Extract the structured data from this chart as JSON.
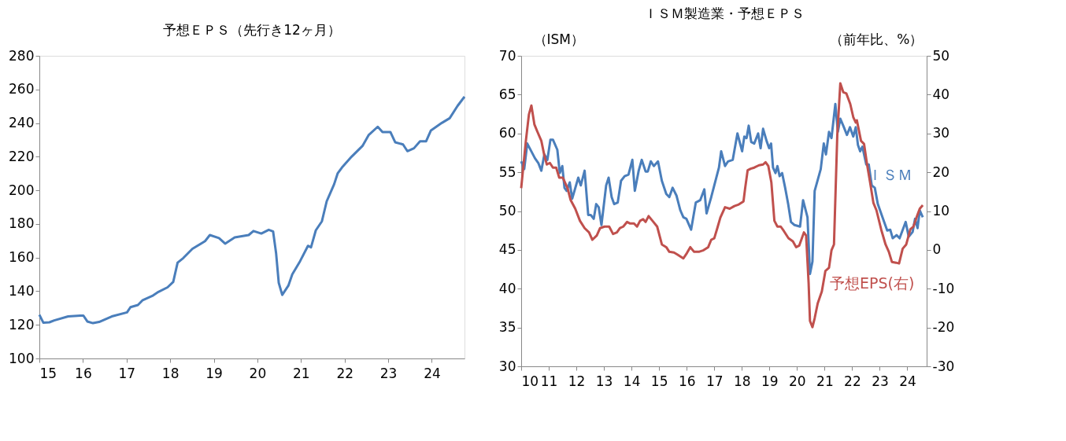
{
  "chart_data": [
    {
      "type": "line",
      "title": "予想ＥＰＳ（先行き12ヶ月）",
      "xlim": [
        2015,
        2024.75
      ],
      "xticks": [
        {
          "value": 2015,
          "label": "15"
        },
        {
          "value": 2016,
          "label": "16"
        },
        {
          "value": 2017,
          "label": "17"
        },
        {
          "value": 2018,
          "label": "18"
        },
        {
          "value": 2019,
          "label": "19"
        },
        {
          "value": 2020,
          "label": "20"
        },
        {
          "value": 2021,
          "label": "21"
        },
        {
          "value": 2022,
          "label": "22"
        },
        {
          "value": 2023,
          "label": "23"
        },
        {
          "value": 2024,
          "label": "24"
        }
      ],
      "ylim": [
        100,
        280
      ],
      "yticks": [
        100,
        120,
        140,
        160,
        180,
        200,
        220,
        240,
        260,
        280
      ],
      "grid": false,
      "series": [
        {
          "color": "#4a7ebb",
          "x": [
            2015.0,
            2015.09,
            2015.23,
            2015.34,
            2015.66,
            2015.94,
            2016.01,
            2016.1,
            2016.23,
            2016.37,
            2016.66,
            2017.01,
            2017.09,
            2017.26,
            2017.37,
            2017.59,
            2017.73,
            2017.94,
            2018.07,
            2018.17,
            2018.3,
            2018.51,
            2018.8,
            2018.91,
            2019.12,
            2019.26,
            2019.48,
            2019.8,
            2019.91,
            2020.09,
            2020.26,
            2020.36,
            2020.43,
            2020.49,
            2020.57,
            2020.71,
            2020.8,
            2020.98,
            2021.16,
            2021.23,
            2021.34,
            2021.48,
            2021.59,
            2021.76,
            2021.84,
            2021.94,
            2022.16,
            2022.41,
            2022.55,
            2022.76,
            2022.87,
            2023.05,
            2023.16,
            2023.34,
            2023.44,
            2023.59,
            2023.73,
            2023.87,
            2023.98,
            2024.23,
            2024.41,
            2024.59,
            2024.75
          ],
          "values": [
            126,
            121.3,
            121.5,
            122.6,
            125,
            125.5,
            125.5,
            122,
            121,
            121.7,
            125,
            127.4,
            130.5,
            131.8,
            134.7,
            137.2,
            139.6,
            142.3,
            145.5,
            157,
            159.7,
            165.2,
            169.8,
            173.4,
            171.6,
            168.3,
            172,
            173.4,
            175.8,
            174.3,
            176.5,
            175.6,
            162.4,
            145,
            137.8,
            143.3,
            150,
            157.9,
            167,
            166.1,
            176.2,
            181.6,
            193.5,
            203.6,
            210,
            213.6,
            220,
            226.4,
            232.8,
            237.8,
            234.7,
            234.7,
            228.6,
            227.3,
            223.3,
            225,
            229.2,
            229.2,
            235.6,
            240.1,
            242.9,
            250.2,
            255.7
          ]
        }
      ]
    },
    {
      "type": "line",
      "title": "ＩＳＭ製造業・予想ＥＰＳ",
      "ylabel": "（ISM）",
      "y2label": "（前年比、%）",
      "xlim": [
        2010,
        2024.7
      ],
      "xticks": [
        {
          "value": 2010,
          "label": "10"
        },
        {
          "value": 2011,
          "label": "11"
        },
        {
          "value": 2012,
          "label": "12"
        },
        {
          "value": 2013,
          "label": "13"
        },
        {
          "value": 2014,
          "label": "14"
        },
        {
          "value": 2015,
          "label": "15"
        },
        {
          "value": 2016,
          "label": "16"
        },
        {
          "value": 2017,
          "label": "17"
        },
        {
          "value": 2018,
          "label": "18"
        },
        {
          "value": 2019,
          "label": "19"
        },
        {
          "value": 2020,
          "label": "20"
        },
        {
          "value": 2021,
          "label": "21"
        },
        {
          "value": 2022,
          "label": "22"
        },
        {
          "value": 2023,
          "label": "23"
        },
        {
          "value": 2024,
          "label": "24"
        }
      ],
      "ylim": [
        30,
        70
      ],
      "yticks": [
        30,
        35,
        40,
        45,
        50,
        55,
        60,
        65,
        70
      ],
      "y2lim": [
        -30,
        50
      ],
      "y2ticks": [
        -30,
        -20,
        -10,
        0,
        10,
        20,
        30,
        40,
        50
      ],
      "grid": false,
      "series": [
        {
          "name": "ＩＳＭ",
          "color": "#4a7ebb",
          "x": [
            2010.0,
            2010.11,
            2010.22,
            2010.5,
            2010.62,
            2010.73,
            2010.84,
            2010.95,
            2011.06,
            2011.15,
            2011.31,
            2011.4,
            2011.49,
            2011.57,
            2011.65,
            2011.76,
            2011.85,
            2012.07,
            2012.16,
            2012.3,
            2012.43,
            2012.52,
            2012.63,
            2012.72,
            2012.81,
            2012.91,
            2013.08,
            2013.17,
            2013.28,
            2013.37,
            2013.5,
            2013.62,
            2013.75,
            2013.89,
            2014.03,
            2014.12,
            2014.26,
            2014.37,
            2014.51,
            2014.59,
            2014.7,
            2014.81,
            2014.96,
            2015.1,
            2015.26,
            2015.37,
            2015.49,
            2015.63,
            2015.77,
            2015.88,
            2015.99,
            2016.16,
            2016.33,
            2016.49,
            2016.64,
            2016.72,
            2016.89,
            2017.17,
            2017.25,
            2017.39,
            2017.5,
            2017.67,
            2017.84,
            2018.01,
            2018.09,
            2018.17,
            2018.25,
            2018.34,
            2018.45,
            2018.59,
            2018.68,
            2018.77,
            2018.9,
            2018.99,
            2019.06,
            2019.13,
            2019.22,
            2019.29,
            2019.37,
            2019.46,
            2019.57,
            2019.68,
            2019.78,
            2019.91,
            2020.11,
            2020.22,
            2020.38,
            2020.47,
            2020.56,
            2020.64,
            2020.86,
            2020.97,
            2021.05,
            2021.16,
            2021.25,
            2021.39,
            2021.48,
            2021.57,
            2021.7,
            2021.81,
            2021.92,
            2022.04,
            2022.13,
            2022.21,
            2022.29,
            2022.37,
            2022.51,
            2022.6,
            2022.71,
            2022.82,
            2022.93,
            2023.1,
            2023.27,
            2023.38,
            2023.47,
            2023.61,
            2023.72,
            2023.94,
            2024.05,
            2024.19,
            2024.28,
            2024.37,
            2024.45,
            2024.56
          ],
          "values": [
            56.4,
            55.4,
            58.7,
            56.8,
            56.2,
            55.2,
            57.3,
            56.6,
            59.2,
            59.2,
            57.9,
            54.9,
            55.8,
            53,
            52.6,
            53.7,
            51.6,
            54.3,
            53.3,
            55.2,
            49.5,
            49.5,
            49,
            50.9,
            50.5,
            48.2,
            53.3,
            54.3,
            51.8,
            50.9,
            51.1,
            53.9,
            54.5,
            54.7,
            56.6,
            52.6,
            55.2,
            56.6,
            55.1,
            55.1,
            56.4,
            55.8,
            56.4,
            53.9,
            52.2,
            51.8,
            53,
            52,
            50.1,
            49.2,
            49,
            47.6,
            51.1,
            51.4,
            52.8,
            49.7,
            51.8,
            55.6,
            57.7,
            55.8,
            56.4,
            56.6,
            60,
            57.7,
            59.6,
            59.4,
            61,
            58.9,
            58.7,
            60,
            58.1,
            60.6,
            59,
            58.1,
            58.7,
            55.6,
            54.9,
            55.8,
            54.5,
            54.9,
            53,
            50.9,
            48.6,
            48.2,
            48,
            51.4,
            49.2,
            41.9,
            43.5,
            52.6,
            55.4,
            58.7,
            57.3,
            60.2,
            59.4,
            63.8,
            60.2,
            61.9,
            60.8,
            59.8,
            60.8,
            59.6,
            60.8,
            58.5,
            57.7,
            58.3,
            56,
            56,
            53.3,
            53,
            50.9,
            49.2,
            47.5,
            47.6,
            46.5,
            46.9,
            46.5,
            48.6,
            46.7,
            47.3,
            49,
            47.8,
            50.1,
            49.2
          ]
        },
        {
          "name": "予想EPS(右)",
          "color": "#c0504d",
          "axis": "y2",
          "x": [
            2010.0,
            2010.17,
            2010.28,
            2010.37,
            2010.48,
            2010.59,
            2010.73,
            2010.84,
            2010.93,
            2011.04,
            2011.15,
            2011.27,
            2011.38,
            2011.51,
            2011.68,
            2011.79,
            2011.96,
            2012.13,
            2012.3,
            2012.46,
            2012.58,
            2012.74,
            2012.86,
            2013.02,
            2013.19,
            2013.33,
            2013.47,
            2013.58,
            2013.7,
            2013.84,
            2013.95,
            2014.09,
            2014.2,
            2014.31,
            2014.42,
            2014.51,
            2014.62,
            2014.76,
            2014.93,
            2015.1,
            2015.26,
            2015.37,
            2015.54,
            2015.66,
            2015.88,
            2016.01,
            2016.13,
            2016.27,
            2016.44,
            2016.61,
            2016.78,
            2016.89,
            2017.0,
            2017.11,
            2017.22,
            2017.39,
            2017.56,
            2017.73,
            2017.89,
            2018.06,
            2018.12,
            2018.21,
            2018.32,
            2018.45,
            2018.62,
            2018.77,
            2018.86,
            2018.96,
            2019.07,
            2019.18,
            2019.29,
            2019.41,
            2019.52,
            2019.69,
            2019.85,
            2019.97,
            2020.08,
            2020.25,
            2020.33,
            2020.42,
            2020.47,
            2020.56,
            2020.64,
            2020.75,
            2020.9,
            2021.03,
            2021.16,
            2021.25,
            2021.34,
            2021.46,
            2021.57,
            2021.68,
            2021.79,
            2021.93,
            2022.04,
            2022.13,
            2022.17,
            2022.32,
            2022.43,
            2022.54,
            2022.65,
            2022.77,
            2022.88,
            2023.05,
            2023.21,
            2023.33,
            2023.44,
            2023.59,
            2023.7,
            2023.83,
            2023.96,
            2024.11,
            2024.22,
            2024.33,
            2024.45,
            2024.56
          ],
          "values": [
            15.9,
            28.1,
            34.9,
            37.2,
            32.3,
            30.4,
            28.1,
            24.3,
            22,
            22.4,
            21.2,
            21.2,
            18.6,
            18.6,
            15.9,
            12.9,
            10.6,
            7.5,
            5.6,
            4.5,
            2.6,
            3.7,
            5.6,
            6,
            6,
            4.1,
            4.5,
            5.6,
            6,
            7.2,
            6.8,
            6.8,
            6,
            7.5,
            7.9,
            7.2,
            8.7,
            7.5,
            6,
            1.4,
            0.7,
            -0.5,
            -0.7,
            -1.2,
            -2.2,
            -0.8,
            0.7,
            -0.5,
            -0.5,
            -0.1,
            0.7,
            2.6,
            3,
            5.6,
            8.3,
            11,
            10.6,
            11.3,
            11.7,
            12.5,
            15.9,
            20.5,
            20.9,
            21.2,
            21.8,
            22,
            22.6,
            21.6,
            17.4,
            7.5,
            6,
            6,
            4.9,
            3,
            2.2,
            0.7,
            1.1,
            4.5,
            3.7,
            -8.4,
            -18.3,
            -19.9,
            -17.6,
            -13.8,
            -10.7,
            -5.4,
            -4.6,
            -0.1,
            1.4,
            29.6,
            42.9,
            40.6,
            40.3,
            37.6,
            34.2,
            32.8,
            33.4,
            28.1,
            27.3,
            22,
            17.4,
            12.1,
            10.2,
            5.3,
            1.4,
            -0.5,
            -3.1,
            -3.3,
            -3.5,
            0.3,
            1.4,
            5.3,
            6,
            8.3,
            10.6,
            11.5
          ]
        }
      ]
    }
  ]
}
